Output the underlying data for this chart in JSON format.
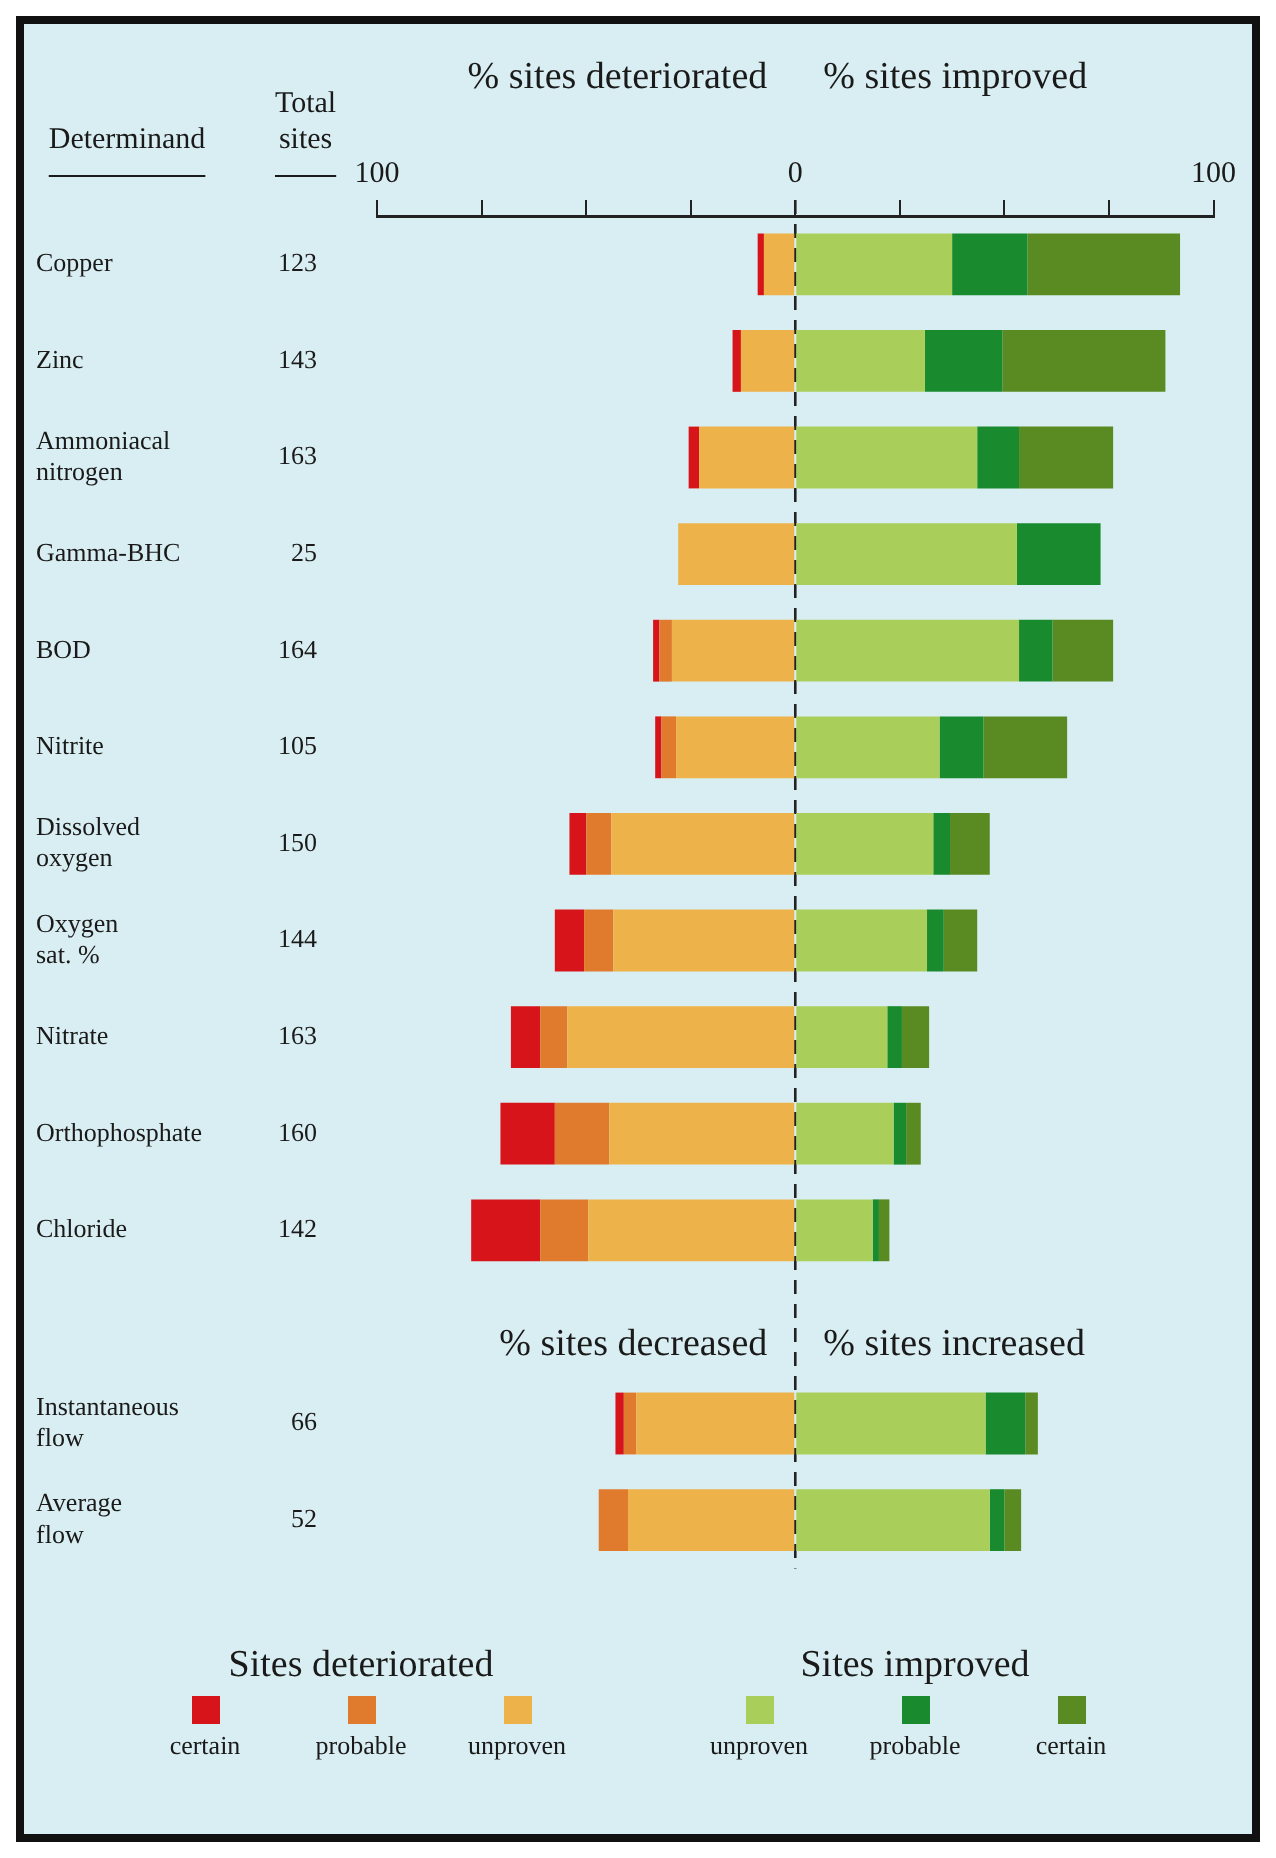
{
  "chart_data": {
    "type": "bar",
    "orientation": "horizontal",
    "stacked": true,
    "ylabel": "Determinand",
    "y2label": "Total sites",
    "categories": [
      "Copper",
      "Zinc",
      "Ammoniacal nitrogen",
      "Gamma-BHC",
      "BOD",
      "Nitrite",
      "Dissolved oxygen",
      "Oxygen sat. %",
      "Nitrate",
      "Orthophosphate",
      "Chloride",
      null,
      "Instantaneous flow",
      "Average flow"
    ],
    "y2_categories": [
      "123",
      "143",
      "163",
      "25",
      "164",
      "105",
      "150",
      "144",
      "163",
      "160",
      "142",
      null,
      "66",
      "52"
    ],
    "series": [
      {
        "name": "unproven",
        "color": "#eeb24a",
        "values": [
          -7.5,
          -13,
          -23,
          -28,
          -29.5,
          -28.5,
          -44,
          -43.5,
          -54.5,
          -44.5,
          -49.5,
          null,
          -38,
          -40
        ]
      },
      {
        "name": "probable",
        "color": "#e07a2c",
        "values": [
          0,
          0,
          0,
          0,
          -3,
          -3.5,
          -6,
          -7,
          -6.5,
          -13,
          -11.5,
          null,
          -3,
          -7
        ]
      },
      {
        "name": "certain",
        "color": "#d7141a",
        "values": [
          -1.5,
          -2,
          -2.5,
          0,
          -1.5,
          -1.5,
          -4,
          -7,
          -7,
          -13,
          -16.5,
          null,
          -2,
          0
        ]
      },
      {
        "name": "unproven",
        "color": "#a9cf5a",
        "values": [
          37.5,
          31,
          43.5,
          53,
          53.5,
          34.5,
          33,
          31.5,
          22,
          23.5,
          18.5,
          null,
          45.5,
          46.5
        ]
      },
      {
        "name": "probable",
        "color": "#1a8a2e",
        "values": [
          18,
          18.5,
          10,
          20,
          8,
          10.5,
          4,
          4,
          3.5,
          3,
          1.5,
          null,
          9.5,
          3.5
        ]
      },
      {
        "name": "certain",
        "color": "#5a8a22",
        "values": [
          36.5,
          39,
          22.5,
          0,
          14.5,
          20,
          9.5,
          8,
          6.5,
          3.5,
          2.5,
          null,
          3,
          4
        ]
      }
    ],
    "xlim": [
      -100,
      100
    ],
    "xticks": [
      {
        "value": -100,
        "label": "100"
      },
      {
        "value": -75,
        "label": null
      },
      {
        "value": -50,
        "label": null
      },
      {
        "value": -25,
        "label": null
      },
      0,
      {
        "value": 25,
        "label": null
      },
      {
        "value": 50,
        "label": null
      },
      {
        "value": 75,
        "label": null
      },
      100
    ],
    "ref_lines": [
      {
        "axis": "x",
        "value": 0,
        "line_style": "dashed",
        "color": "#222222"
      }
    ],
    "annotations": [
      "% sites deteriorated",
      "% sites improved",
      "% sites decreased",
      "% sites increased",
      "Sites deteriorated",
      "Sites improved"
    ],
    "grid": false,
    "legend": "bottom"
  }
}
